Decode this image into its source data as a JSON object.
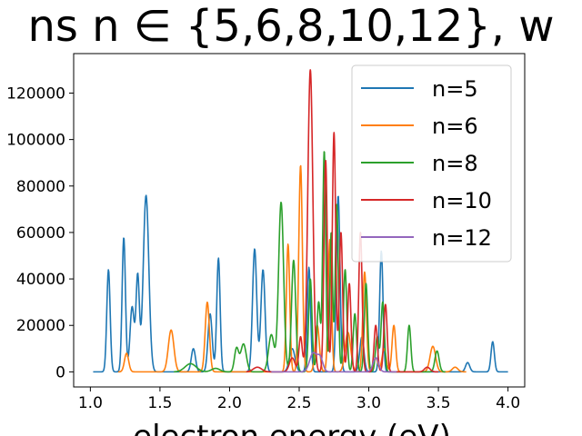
{
  "chart_data": {
    "type": "line",
    "title": "ns n ∈ {5,6,8,10,12}, w",
    "xlabel": "electron energy (eV)",
    "ylabel": "",
    "xlim": [
      0.88,
      4.12
    ],
    "ylim": [
      -6500,
      137000
    ],
    "xticks": [
      1.0,
      1.5,
      2.0,
      2.5,
      3.0,
      3.5,
      4.0
    ],
    "xtick_labels": [
      "1.0",
      "1.5",
      "2.0",
      "2.5",
      "3.0",
      "3.5",
      "4.0"
    ],
    "yticks": [
      0,
      20000,
      40000,
      60000,
      80000,
      100000,
      120000
    ],
    "ytick_labels": [
      "0",
      "20000",
      "40000",
      "60000",
      "80000",
      "100000",
      "120000"
    ],
    "grid": false,
    "legend_position": "top-right",
    "series": [
      {
        "name": "n=5",
        "color": "#1f77b4",
        "range": [
          1.02,
          4.0
        ],
        "peaks": [
          [
            1.13,
            44000,
            0.012
          ],
          [
            1.24,
            58000,
            0.012
          ],
          [
            1.3,
            28000,
            0.015
          ],
          [
            1.34,
            41000,
            0.012
          ],
          [
            1.4,
            76000,
            0.02
          ],
          [
            1.74,
            10000,
            0.015
          ],
          [
            1.86,
            25000,
            0.015
          ],
          [
            1.92,
            49000,
            0.012
          ],
          [
            2.18,
            53000,
            0.015
          ],
          [
            2.24,
            44000,
            0.015
          ],
          [
            2.45,
            10000,
            0.02
          ],
          [
            2.57,
            45000,
            0.012
          ],
          [
            2.78,
            76000,
            0.013
          ],
          [
            2.95,
            15000,
            0.015
          ],
          [
            3.09,
            52000,
            0.012
          ],
          [
            3.71,
            4000,
            0.015
          ],
          [
            3.89,
            13000,
            0.012
          ]
        ]
      },
      {
        "name": "n=6",
        "color": "#ff7f0e",
        "range": [
          1.2,
          3.7
        ],
        "peaks": [
          [
            1.26,
            8000,
            0.015
          ],
          [
            1.58,
            18000,
            0.02
          ],
          [
            1.84,
            30000,
            0.015
          ],
          [
            2.42,
            55000,
            0.012
          ],
          [
            2.51,
            89000,
            0.013
          ],
          [
            2.63,
            20000,
            0.015
          ],
          [
            2.72,
            57000,
            0.012
          ],
          [
            2.85,
            17000,
            0.02
          ],
          [
            2.97,
            43000,
            0.013
          ],
          [
            3.05,
            6000,
            0.015
          ],
          [
            3.11,
            10000,
            0.015
          ],
          [
            3.18,
            20000,
            0.013
          ],
          [
            3.46,
            11000,
            0.02
          ],
          [
            3.62,
            2000,
            0.02
          ]
        ]
      },
      {
        "name": "n=8",
        "color": "#2ca02c",
        "range": [
          1.6,
          3.55
        ],
        "peaks": [
          [
            1.72,
            3500,
            0.04
          ],
          [
            1.9,
            1500,
            0.03
          ],
          [
            2.05,
            10000,
            0.015
          ],
          [
            2.1,
            12000,
            0.02
          ],
          [
            2.3,
            16000,
            0.02
          ],
          [
            2.37,
            73000,
            0.018
          ],
          [
            2.46,
            48000,
            0.015
          ],
          [
            2.58,
            40000,
            0.012
          ],
          [
            2.64,
            30000,
            0.012
          ],
          [
            2.68,
            95000,
            0.011
          ],
          [
            2.73,
            60000,
            0.01
          ],
          [
            2.77,
            72000,
            0.011
          ],
          [
            2.83,
            44000,
            0.012
          ],
          [
            2.9,
            25000,
            0.012
          ],
          [
            2.98,
            38000,
            0.012
          ],
          [
            3.06,
            15000,
            0.012
          ],
          [
            3.1,
            30000,
            0.012
          ],
          [
            3.29,
            20000,
            0.012
          ],
          [
            3.49,
            9000,
            0.015
          ]
        ]
      },
      {
        "name": "n=10",
        "color": "#d62728",
        "range": [
          2.12,
          3.5
        ],
        "peaks": [
          [
            2.2,
            2000,
            0.03
          ],
          [
            2.45,
            6000,
            0.02
          ],
          [
            2.51,
            15000,
            0.012
          ],
          [
            2.58,
            130000,
            0.018
          ],
          [
            2.69,
            91000,
            0.012
          ],
          [
            2.75,
            103000,
            0.012
          ],
          [
            2.8,
            60000,
            0.012
          ],
          [
            2.86,
            38000,
            0.012
          ],
          [
            2.94,
            60000,
            0.012
          ],
          [
            3.05,
            20000,
            0.012
          ],
          [
            3.12,
            29000,
            0.012
          ],
          [
            3.42,
            2000,
            0.02
          ]
        ]
      },
      {
        "name": "n=12",
        "color": "#9467bd",
        "range": [
          2.3,
          3.2
        ],
        "peaks": [
          [
            2.6,
            8000,
            0.025
          ],
          [
            2.65,
            6000,
            0.02
          ],
          [
            3.05,
            6000,
            0.02
          ]
        ]
      }
    ]
  }
}
